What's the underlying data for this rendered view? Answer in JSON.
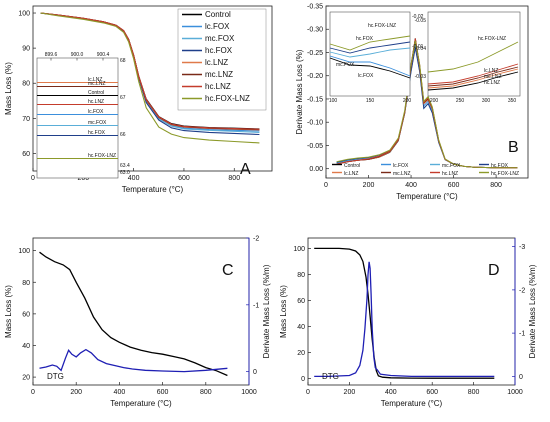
{
  "colors": {
    "Control": "#000000",
    "lc.FOX": "#3b8fdc",
    "mc.FOX": "#5aaed8",
    "hc.FOX": "#1f3f8a",
    "lc.LNZ": "#e07a4a",
    "mc.LNZ": "#7a2a18",
    "hc.LNZ": "#c43c2c",
    "hc.FOX-LNZ": "#8c9a2a",
    "blue": "#1f1fb4"
  },
  "chart_data": [
    {
      "panel": "A",
      "type": "line",
      "xlabel": "Temperature (°C)",
      "ylabel": "Mass Loss (%)",
      "xlim": [
        0,
        950
      ],
      "ylim": [
        55,
        102
      ],
      "xticks": [
        0,
        200,
        400,
        600,
        800
      ],
      "yticks": [
        60,
        70,
        80,
        90,
        100
      ],
      "legend_position": "top-right",
      "series": [
        {
          "name": "Control",
          "x": [
            30,
            100,
            200,
            280,
            330,
            360,
            380,
            400,
            420,
            450,
            500,
            550,
            600,
            700,
            800,
            900
          ],
          "y": [
            100,
            99.4,
            98.5,
            97.5,
            96.5,
            95,
            92.5,
            88,
            82,
            75.5,
            70.5,
            68.5,
            67.8,
            67.4,
            67.2,
            67.0
          ]
        },
        {
          "name": "lc.FOX",
          "x": [
            30,
            100,
            200,
            280,
            330,
            360,
            380,
            400,
            420,
            450,
            500,
            550,
            600,
            700,
            800,
            900
          ],
          "y": [
            100,
            99.4,
            98.5,
            97.5,
            96.5,
            95,
            92.5,
            88,
            82,
            75,
            70,
            68,
            67.2,
            66.8,
            66.6,
            66.4
          ]
        },
        {
          "name": "mc.FOX",
          "x": [
            30,
            100,
            200,
            280,
            330,
            360,
            380,
            400,
            420,
            450,
            500,
            550,
            600,
            700,
            800,
            900
          ],
          "y": [
            100,
            99.3,
            98.4,
            97.4,
            96.4,
            94.8,
            92.3,
            87.8,
            81.7,
            74.8,
            69.8,
            67.8,
            67,
            66.6,
            66.3,
            66.0
          ]
        },
        {
          "name": "hc.FOX",
          "x": [
            30,
            100,
            200,
            280,
            330,
            360,
            380,
            400,
            420,
            450,
            500,
            550,
            600,
            700,
            800,
            900
          ],
          "y": [
            100,
            99.3,
            98.4,
            97.4,
            96.4,
            94.8,
            92.3,
            87.7,
            81.5,
            74.5,
            69.5,
            67.3,
            66.5,
            66.0,
            65.7,
            65.4
          ]
        },
        {
          "name": "lc.LNZ",
          "x": [
            30,
            100,
            200,
            280,
            330,
            360,
            380,
            400,
            420,
            450,
            500,
            550,
            600,
            700,
            800,
            900
          ],
          "y": [
            100,
            99.4,
            98.5,
            97.5,
            96.5,
            95,
            92.5,
            88,
            82,
            75.2,
            70.2,
            68.2,
            67.5,
            67.1,
            66.9,
            66.7
          ]
        },
        {
          "name": "mc.LNZ",
          "x": [
            30,
            100,
            200,
            280,
            330,
            360,
            380,
            400,
            420,
            450,
            500,
            550,
            600,
            700,
            800,
            900
          ],
          "y": [
            100,
            99.4,
            98.5,
            97.5,
            96.5,
            95,
            92.5,
            88,
            82,
            75.3,
            70.3,
            68.3,
            67.6,
            67.2,
            67.0,
            66.8
          ]
        },
        {
          "name": "hc.LNZ",
          "x": [
            30,
            100,
            200,
            280,
            330,
            360,
            380,
            400,
            420,
            450,
            500,
            550,
            600,
            700,
            800,
            900
          ],
          "y": [
            100,
            99.4,
            98.5,
            97.5,
            96.5,
            95,
            92.5,
            88,
            82,
            75.4,
            70.4,
            68.4,
            67.7,
            67.3,
            67.1,
            66.9
          ]
        },
        {
          "name": "hc.FOX-LNZ",
          "x": [
            30,
            100,
            200,
            280,
            330,
            360,
            380,
            400,
            420,
            450,
            500,
            550,
            600,
            700,
            800,
            900
          ],
          "y": [
            100,
            99.2,
            98.2,
            97.2,
            96.2,
            94.5,
            91.8,
            87,
            80.5,
            73,
            67.5,
            65.5,
            64.5,
            63.8,
            63.4,
            63.0
          ]
        }
      ],
      "inset": {
        "xticks": [
          "899.6",
          "900.0",
          "900.4"
        ],
        "left_labels": [
          "lc.LNZ",
          "mc.LNZ",
          "Control",
          "hc.LNZ",
          "lc.FOX",
          "mc.FOX",
          "hc.FOX",
          "hc.FOX-LNZ"
        ],
        "right_labels": [
          "68",
          "67",
          "66",
          "63.4",
          "63.0"
        ]
      }
    },
    {
      "panel": "B",
      "type": "line",
      "xlabel": "Temperature (°C)",
      "ylabel": "Derivate Mass Loss (%)",
      "xlim": [
        0,
        950
      ],
      "ylim": [
        0.02,
        -0.35
      ],
      "xticks": [
        0,
        200,
        400,
        600,
        800
      ],
      "yticks": [
        0.0,
        -0.05,
        -0.1,
        -0.15,
        -0.2,
        -0.25,
        -0.3,
        -0.35
      ],
      "legend_position": "bottom",
      "series": [
        {
          "name": "Control",
          "x": [
            50,
            100,
            150,
            200,
            250,
            300,
            340,
            370,
            400,
            420,
            440,
            460,
            480,
            500,
            530,
            560,
            600,
            650,
            700,
            800,
            900
          ],
          "y": [
            -0.01,
            -0.015,
            -0.018,
            -0.02,
            -0.025,
            -0.035,
            -0.06,
            -0.12,
            -0.22,
            -0.28,
            -0.22,
            -0.14,
            -0.15,
            -0.13,
            -0.06,
            -0.02,
            -0.01,
            -0.005,
            -0.003,
            -0.002,
            -0.002
          ]
        },
        {
          "name": "lc.FOX",
          "x": [
            50,
            100,
            150,
            200,
            250,
            300,
            340,
            370,
            400,
            420,
            440,
            460,
            480,
            500,
            530,
            560,
            600,
            650,
            700,
            800,
            900
          ],
          "y": [
            -0.012,
            -0.017,
            -0.02,
            -0.022,
            -0.027,
            -0.037,
            -0.062,
            -0.12,
            -0.215,
            -0.27,
            -0.215,
            -0.135,
            -0.145,
            -0.125,
            -0.058,
            -0.02,
            -0.01,
            -0.005,
            -0.003,
            -0.002,
            -0.002
          ]
        },
        {
          "name": "mc.FOX",
          "x": [
            50,
            100,
            150,
            200,
            250,
            300,
            340,
            370,
            400,
            420,
            440,
            460,
            480,
            500,
            530,
            560,
            600,
            650,
            700,
            800,
            900
          ],
          "y": [
            -0.011,
            -0.016,
            -0.019,
            -0.021,
            -0.026,
            -0.036,
            -0.061,
            -0.118,
            -0.21,
            -0.265,
            -0.21,
            -0.13,
            -0.14,
            -0.12,
            -0.056,
            -0.019,
            -0.01,
            -0.005,
            -0.003,
            -0.002,
            -0.002
          ]
        },
        {
          "name": "hc.FOX",
          "x": [
            50,
            100,
            150,
            200,
            250,
            300,
            340,
            370,
            400,
            420,
            440,
            460,
            480,
            500,
            530,
            560,
            600,
            650,
            700,
            800,
            900
          ],
          "y": [
            -0.014,
            -0.019,
            -0.022,
            -0.024,
            -0.029,
            -0.039,
            -0.064,
            -0.12,
            -0.21,
            -0.26,
            -0.21,
            -0.13,
            -0.14,
            -0.12,
            -0.057,
            -0.02,
            -0.01,
            -0.005,
            -0.003,
            -0.002,
            -0.002
          ]
        },
        {
          "name": "lc.LNZ",
          "x": [
            50,
            100,
            150,
            200,
            250,
            300,
            340,
            370,
            400,
            420,
            440,
            460,
            480,
            500,
            530,
            560,
            600,
            650,
            700,
            800,
            900
          ],
          "y": [
            -0.01,
            -0.015,
            -0.018,
            -0.02,
            -0.025,
            -0.036,
            -0.061,
            -0.12,
            -0.22,
            -0.275,
            -0.22,
            -0.14,
            -0.148,
            -0.128,
            -0.059,
            -0.02,
            -0.01,
            -0.005,
            -0.003,
            -0.002,
            -0.002
          ]
        },
        {
          "name": "mc.LNZ",
          "x": [
            50,
            100,
            150,
            200,
            250,
            300,
            340,
            370,
            400,
            420,
            440,
            460,
            480,
            500,
            530,
            560,
            600,
            650,
            700,
            800,
            900
          ],
          "y": [
            -0.01,
            -0.015,
            -0.018,
            -0.02,
            -0.026,
            -0.037,
            -0.062,
            -0.12,
            -0.222,
            -0.278,
            -0.222,
            -0.142,
            -0.15,
            -0.13,
            -0.06,
            -0.02,
            -0.01,
            -0.005,
            -0.003,
            -0.002,
            -0.002
          ]
        },
        {
          "name": "hc.LNZ",
          "x": [
            50,
            100,
            150,
            200,
            250,
            300,
            340,
            370,
            400,
            420,
            440,
            460,
            480,
            500,
            530,
            560,
            600,
            650,
            700,
            800,
            900
          ],
          "y": [
            -0.01,
            -0.015,
            -0.018,
            -0.021,
            -0.027,
            -0.038,
            -0.063,
            -0.122,
            -0.224,
            -0.28,
            -0.224,
            -0.143,
            -0.152,
            -0.131,
            -0.061,
            -0.02,
            -0.01,
            -0.005,
            -0.003,
            -0.002,
            -0.002
          ]
        },
        {
          "name": "hc.FOX-LNZ",
          "x": [
            50,
            100,
            150,
            200,
            250,
            300,
            340,
            370,
            400,
            420,
            440,
            460,
            480,
            500,
            530,
            560,
            600,
            650,
            700,
            800,
            900
          ],
          "y": [
            -0.015,
            -0.02,
            -0.023,
            -0.025,
            -0.03,
            -0.04,
            -0.066,
            -0.125,
            -0.225,
            -0.275,
            -0.225,
            -0.145,
            -0.155,
            -0.133,
            -0.062,
            -0.021,
            -0.01,
            -0.005,
            -0.003,
            -0.002,
            -0.002
          ]
        }
      ],
      "inset1": {
        "xticks": [
          "100",
          "150",
          "200"
        ],
        "yticks": [
          "-0.02",
          "-0.01"
        ],
        "labels": [
          "hc.FOX-LNZ",
          "hc.FOX",
          "mc.FOX",
          "lc.FOX"
        ]
      },
      "inset2": {
        "xticks": [
          "200",
          "250",
          "300",
          "350"
        ],
        "yticks": [
          "-0.05",
          "-0.04",
          "-0.03"
        ],
        "labels": [
          "hc.FOX-LNZ",
          "lc.LNZ",
          "mc.LNZ",
          "hc.LNZ"
        ]
      }
    },
    {
      "panel": "C",
      "type": "line",
      "xlabel": "Temperature (°C)",
      "ylabel": "Mass Loss (%)",
      "y2label": "Derivate Mass Loss (%/m)",
      "xlim": [
        0,
        1000
      ],
      "ylim": [
        15,
        108
      ],
      "y2lim": [
        0.2,
        -2.0
      ],
      "xticks": [
        0,
        200,
        400,
        600,
        800,
        1000
      ],
      "yticks": [
        20,
        40,
        60,
        80,
        100
      ],
      "y2ticks": [
        0,
        -1,
        -2
      ],
      "annotation": "DTG",
      "series": [
        {
          "name": "",
          "axis": "left",
          "x": [
            30,
            60,
            100,
            140,
            170,
            200,
            240,
            280,
            320,
            360,
            400,
            450,
            500,
            550,
            600,
            650,
            700,
            750,
            800,
            850,
            900
          ],
          "y": [
            99,
            96,
            93,
            91,
            88,
            80,
            70,
            58,
            50,
            45,
            42,
            39,
            37,
            35.5,
            34.5,
            33,
            31.5,
            29,
            26,
            24,
            21
          ]
        },
        {
          "name": "DTG",
          "axis": "right",
          "x": [
            30,
            60,
            90,
            110,
            130,
            150,
            165,
            180,
            200,
            220,
            245,
            270,
            300,
            340,
            380,
            420,
            460,
            520,
            600,
            700,
            800,
            900
          ],
          "y": [
            -0.05,
            -0.07,
            -0.1,
            -0.08,
            -0.02,
            -0.2,
            -0.32,
            -0.26,
            -0.22,
            -0.28,
            -0.33,
            -0.28,
            -0.18,
            -0.12,
            -0.09,
            -0.06,
            -0.04,
            -0.02,
            -0.01,
            0,
            -0.02,
            -0.05
          ]
        }
      ]
    },
    {
      "panel": "D",
      "type": "line",
      "xlabel": "Temperature (°C)",
      "ylabel": "Mass Loss (%)",
      "y2label": "Derivate Mass Loss (%/m)",
      "xlim": [
        0,
        1000
      ],
      "ylim": [
        -5,
        108
      ],
      "y2lim": [
        0.2,
        -3.2
      ],
      "xticks": [
        0,
        200,
        400,
        600,
        800,
        1000
      ],
      "yticks": [
        0,
        20,
        40,
        60,
        80,
        100
      ],
      "y2ticks": [
        0,
        -1,
        -2,
        -3
      ],
      "annotation": "DTG",
      "series": [
        {
          "name": "",
          "axis": "left",
          "x": [
            30,
            100,
            150,
            200,
            230,
            250,
            265,
            280,
            290,
            300,
            310,
            320,
            330,
            340,
            360,
            400,
            500,
            600,
            700,
            800,
            900
          ],
          "y": [
            100,
            100,
            100,
            99.5,
            98,
            95,
            90,
            78,
            65,
            48,
            30,
            16,
            6,
            2,
            1,
            0.5,
            0.3,
            0.2,
            0.2,
            0.2,
            0.2
          ]
        },
        {
          "name": "DTG",
          "axis": "right",
          "x": [
            30,
            100,
            200,
            230,
            250,
            265,
            275,
            285,
            290,
            295,
            300,
            305,
            310,
            318,
            325,
            335,
            350,
            400,
            500,
            600,
            700,
            800,
            900
          ],
          "y": [
            0,
            0,
            -0.02,
            -0.08,
            -0.25,
            -0.6,
            -1.1,
            -1.8,
            -2.35,
            -2.65,
            -2.5,
            -1.9,
            -1.1,
            -0.45,
            -0.2,
            -0.15,
            -0.05,
            -0.02,
            0,
            0,
            0,
            0,
            0
          ]
        }
      ]
    }
  ]
}
